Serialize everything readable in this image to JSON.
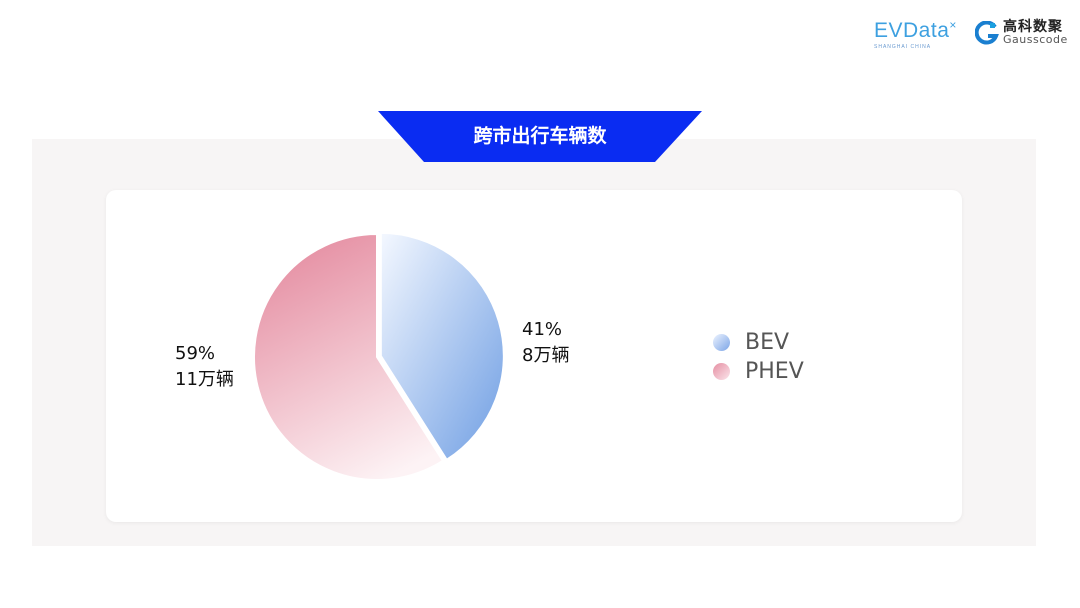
{
  "header": {
    "logo_evdata": "EVData",
    "logo_evdata_sub": "SHANGHAI CHINA",
    "logo_gauss_cn": "高科数聚",
    "logo_gauss_en": "Gausscode"
  },
  "banner_color": "#0a2cf2",
  "chart_data": {
    "type": "pie",
    "title": "跨市出行车辆数",
    "slices": [
      {
        "name": "BEV",
        "percent": 41,
        "label_pct": "41%",
        "label_count": "8万辆",
        "color_start": "#f4f8ff",
        "color_end": "#6f9ee3"
      },
      {
        "name": "PHEV",
        "percent": 59,
        "label_pct": "59%",
        "label_count": "11万辆",
        "color_start": "#e58ea2",
        "color_end": "#fdf3f5"
      }
    ],
    "legend": {
      "placement": "right",
      "entries": [
        "BEV",
        "PHEV"
      ]
    }
  }
}
